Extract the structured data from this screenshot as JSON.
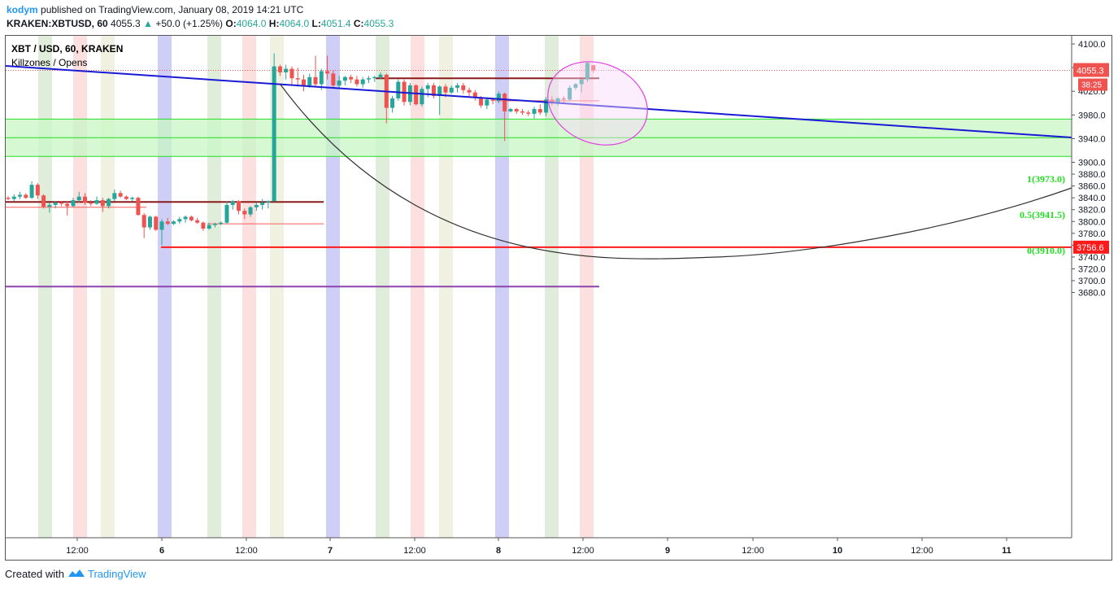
{
  "header": {
    "user": "kodym",
    "published": "published on TradingView.com, January 08, 2019 14:21 UTC",
    "symbol": "KRAKEN:XBTUSD, 60",
    "last": "4055.3",
    "change_arrow": "▲",
    "change": "+50.0 (+1.25%)",
    "o_label": "O:",
    "o_value": "4064.0",
    "h_label": "H:",
    "h_value": "4064.0",
    "l_label": "L:",
    "l_value": "4051.4",
    "c_label": "C:",
    "c_value": "4055.3"
  },
  "legend": {
    "title": "XBT / USD, 60, KRAKEN",
    "indicator": "Killzones / Opens"
  },
  "price_scale": {
    "last_price_label": "4055.3",
    "countdown": "38:25",
    "line_label": "3756.6"
  },
  "fib_labels": [
    "1(3973.0)",
    "0.5(3941.5)",
    "0(3910.0)"
  ],
  "footer": {
    "created": "Created with",
    "brand": "TradingView"
  },
  "colors": {
    "up": "#26a69a",
    "down": "#ef5350",
    "trendline": "#1a1ad6",
    "fib_zone": "#c8f7c5",
    "fib_line": "#22dd22",
    "red_line": "#ff1a1a",
    "purple_line": "#8e44ad",
    "ellipse": "#e040e0"
  },
  "chart_data": {
    "type": "candlestick",
    "title": "XBT / USD, 60, KRAKEN",
    "ylim": [
      3670,
      4108
    ],
    "y_ticks": [
      4100,
      4060,
      4020,
      3980,
      3940,
      3900,
      3880,
      3860,
      3840,
      3820,
      3800,
      3780,
      3760,
      3740,
      3720,
      3700,
      3680
    ],
    "x_ticks": [
      "12:00",
      "6",
      "12:00",
      "7",
      "12:00",
      "8",
      "12:00",
      "9",
      "12:00",
      "10",
      "12:00",
      "11"
    ],
    "candles": [
      [
        3840,
        3843,
        3836,
        3838
      ],
      [
        3838,
        3846,
        3834,
        3842
      ],
      [
        3842,
        3850,
        3838,
        3845
      ],
      [
        3845,
        3848,
        3838,
        3840
      ],
      [
        3840,
        3868,
        3838,
        3862
      ],
      [
        3862,
        3865,
        3838,
        3844
      ],
      [
        3844,
        3846,
        3822,
        3825
      ],
      [
        3825,
        3832,
        3815,
        3828
      ],
      [
        3828,
        3834,
        3822,
        3832
      ],
      [
        3832,
        3834,
        3826,
        3830
      ],
      [
        3830,
        3834,
        3810,
        3826
      ],
      [
        3826,
        3840,
        3824,
        3836
      ],
      [
        3836,
        3850,
        3832,
        3842
      ],
      [
        3842,
        3848,
        3828,
        3832
      ],
      [
        3832,
        3836,
        3826,
        3830
      ],
      [
        3830,
        3842,
        3828,
        3836
      ],
      [
        3836,
        3840,
        3816,
        3826
      ],
      [
        3826,
        3840,
        3822,
        3838
      ],
      [
        3838,
        3854,
        3834,
        3848
      ],
      [
        3848,
        3852,
        3840,
        3842
      ],
      [
        3842,
        3844,
        3836,
        3838
      ],
      [
        3838,
        3842,
        3834,
        3840
      ],
      [
        3840,
        3842,
        3810,
        3811
      ],
      [
        3811,
        3814,
        3772,
        3790
      ],
      [
        3790,
        3810,
        3786,
        3808
      ],
      [
        3808,
        3810,
        3784,
        3786
      ],
      [
        3786,
        3804,
        3760,
        3800
      ],
      [
        3800,
        3806,
        3794,
        3796
      ],
      [
        3796,
        3802,
        3794,
        3800
      ],
      [
        3800,
        3808,
        3796,
        3804
      ],
      [
        3804,
        3810,
        3798,
        3808
      ],
      [
        3808,
        3810,
        3800,
        3802
      ],
      [
        3802,
        3806,
        3796,
        3798
      ],
      [
        3798,
        3800,
        3784,
        3788
      ],
      [
        3788,
        3798,
        3786,
        3794
      ],
      [
        3794,
        3798,
        3790,
        3796
      ],
      [
        3796,
        3800,
        3794,
        3798
      ],
      [
        3798,
        3834,
        3796,
        3828
      ],
      [
        3828,
        3836,
        3820,
        3834
      ],
      [
        3834,
        3836,
        3812,
        3818
      ],
      [
        3818,
        3822,
        3804,
        3812
      ],
      [
        3812,
        3826,
        3808,
        3824
      ],
      [
        3824,
        3832,
        3818,
        3828
      ],
      [
        3828,
        3838,
        3820,
        3832
      ],
      [
        3832,
        3836,
        3822,
        3834
      ],
      [
        3834,
        4084,
        3834,
        4062
      ],
      [
        4062,
        4065,
        4046,
        4052
      ],
      [
        4052,
        4065,
        4040,
        4058
      ],
      [
        4058,
        4062,
        4030,
        4042
      ],
      [
        4042,
        4060,
        4028,
        4040
      ],
      [
        4040,
        4048,
        4020,
        4030
      ],
      [
        4030,
        4050,
        4026,
        4044
      ],
      [
        4044,
        4080,
        4028,
        4032
      ],
      [
        4032,
        4058,
        4022,
        4054
      ],
      [
        4054,
        4080,
        4040,
        4050
      ],
      [
        4050,
        4056,
        4026,
        4030
      ],
      [
        4030,
        4046,
        4024,
        4038
      ],
      [
        4038,
        4046,
        4030,
        4044
      ],
      [
        4044,
        4048,
        4034,
        4040
      ],
      [
        4040,
        4046,
        4028,
        4032
      ],
      [
        4032,
        4044,
        4026,
        4040
      ],
      [
        4040,
        4046,
        4034,
        4042
      ],
      [
        4042,
        4046,
        4036,
        4044
      ],
      [
        4044,
        4052,
        4040,
        4048
      ],
      [
        4048,
        4050,
        3966,
        3992
      ],
      [
        3992,
        4012,
        3984,
        4008
      ],
      [
        4008,
        4040,
        4004,
        4036
      ],
      [
        4036,
        4040,
        3996,
        4002
      ],
      [
        4002,
        4034,
        3996,
        4030
      ],
      [
        4030,
        4032,
        3996,
        3998
      ],
      [
        3998,
        4028,
        3994,
        4024
      ],
      [
        4024,
        4034,
        4010,
        4030
      ],
      [
        4030,
        4034,
        4008,
        4012
      ],
      [
        4012,
        4030,
        3980,
        4028
      ],
      [
        4028,
        4032,
        4010,
        4018
      ],
      [
        4018,
        4030,
        4016,
        4026
      ],
      [
        4026,
        4034,
        4018,
        4030
      ],
      [
        4030,
        4034,
        4016,
        4022
      ],
      [
        4022,
        4026,
        4010,
        4018
      ],
      [
        4018,
        4022,
        4004,
        4010
      ],
      [
        4010,
        4012,
        3992,
        3996
      ],
      [
        3996,
        4010,
        3990,
        4006
      ],
      [
        4006,
        4008,
        3998,
        4004
      ],
      [
        4004,
        4020,
        4000,
        4016
      ],
      [
        4016,
        4018,
        3936,
        3986
      ],
      [
        3986,
        3992,
        3984,
        3990
      ],
      [
        3990,
        3992,
        3982,
        3986
      ],
      [
        3986,
        3990,
        3980,
        3984
      ],
      [
        3984,
        3988,
        3978,
        3982
      ],
      [
        3982,
        3994,
        3974,
        3990
      ],
      [
        3990,
        3998,
        3980,
        3984
      ],
      [
        3984,
        4010,
        3978,
        4006
      ],
      [
        4006,
        4012,
        3996,
        4000
      ],
      [
        4000,
        4010,
        3996,
        4008
      ],
      [
        4008,
        4012,
        4000,
        4006
      ],
      [
        4006,
        4030,
        4004,
        4026
      ],
      [
        4026,
        4034,
        4022,
        4032
      ],
      [
        4032,
        4040,
        4018,
        4040
      ],
      [
        4040,
        4070,
        4036,
        4068
      ],
      [
        4064,
        4064,
        4051.4,
        4055.3
      ]
    ],
    "horizontal_lines": [
      {
        "name": "open-level-a",
        "price": 3833,
        "color": "#8b1a1a"
      },
      {
        "name": "open-level-b",
        "price": 3824,
        "color": "#ff5c5c"
      },
      {
        "name": "open-level-c",
        "price": 3796,
        "color": "#ff5c5c"
      },
      {
        "name": "open-level-d",
        "price": 4042,
        "color": "#8b1a1a"
      },
      {
        "name": "open-level-e",
        "price": 4004,
        "color": "#ff5c5c"
      },
      {
        "name": "support-line",
        "price": 3756.6,
        "color": "#ff1a1a"
      },
      {
        "name": "low-line",
        "price": 3690,
        "color": "#8e44ad"
      }
    ],
    "fib_levels": [
      3973.0,
      3941.5,
      3910.0
    ]
  }
}
